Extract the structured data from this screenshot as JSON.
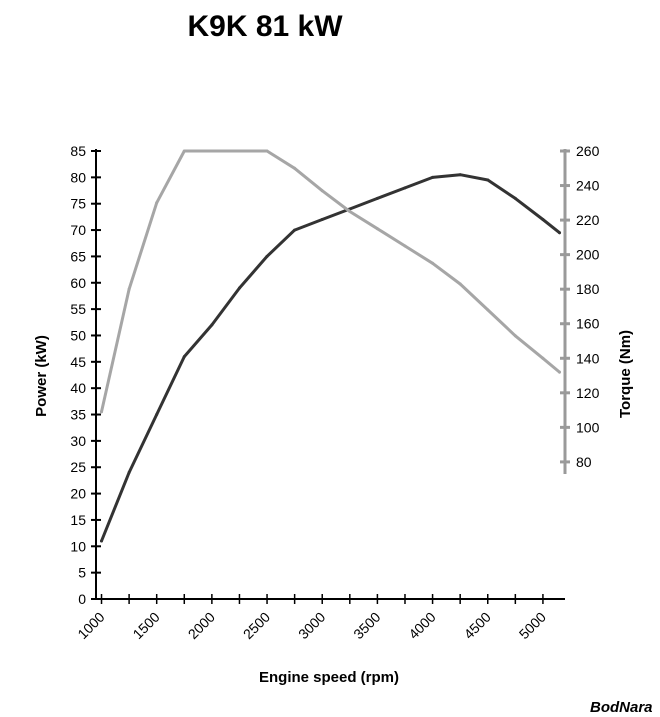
{
  "chart_data": {
    "type": "line",
    "title": "K9K 81 kW",
    "xlabel": "Engine speed (rpm)",
    "ylabel_left": "Power (kW)",
    "ylabel_right": "Torque (Nm)",
    "x_ticks": [
      1000,
      1500,
      2000,
      2500,
      3000,
      3500,
      4000,
      4500,
      5000
    ],
    "xlim": [
      950,
      5200
    ],
    "y_left_ticks": [
      0,
      5,
      10,
      15,
      20,
      25,
      30,
      35,
      40,
      45,
      50,
      55,
      60,
      65,
      70,
      75,
      80,
      85
    ],
    "y_left_lim": [
      0,
      85
    ],
    "y_right_ticks": [
      80,
      100,
      120,
      140,
      160,
      180,
      200,
      220,
      240,
      260
    ],
    "y_right_lim": [
      73,
      260
    ],
    "grid": false,
    "series": [
      {
        "name": "Power",
        "axis": "left",
        "color": "#333333",
        "points": [
          [
            1000,
            11
          ],
          [
            1250,
            24
          ],
          [
            1500,
            35
          ],
          [
            1750,
            46
          ],
          [
            2000,
            52
          ],
          [
            2250,
            59
          ],
          [
            2500,
            65
          ],
          [
            2750,
            70
          ],
          [
            3000,
            72
          ],
          [
            3250,
            74
          ],
          [
            3500,
            76
          ],
          [
            3750,
            78
          ],
          [
            4000,
            80
          ],
          [
            4250,
            80.5
          ],
          [
            4500,
            79.5
          ],
          [
            4750,
            76
          ],
          [
            5000,
            72
          ],
          [
            5150,
            69.5
          ]
        ]
      },
      {
        "name": "Torque",
        "axis": "right",
        "color": "#a6a6a6",
        "points": [
          [
            1000,
            109
          ],
          [
            1250,
            180
          ],
          [
            1500,
            230
          ],
          [
            1750,
            260
          ],
          [
            2000,
            260
          ],
          [
            2250,
            260
          ],
          [
            2500,
            260
          ],
          [
            2750,
            250
          ],
          [
            3000,
            237
          ],
          [
            3250,
            225
          ],
          [
            3500,
            215
          ],
          [
            3750,
            205
          ],
          [
            4000,
            195
          ],
          [
            4250,
            183
          ],
          [
            4500,
            168
          ],
          [
            4750,
            153
          ],
          [
            5000,
            140
          ],
          [
            5150,
            132
          ]
        ]
      }
    ]
  },
  "watermark": "BodNara"
}
